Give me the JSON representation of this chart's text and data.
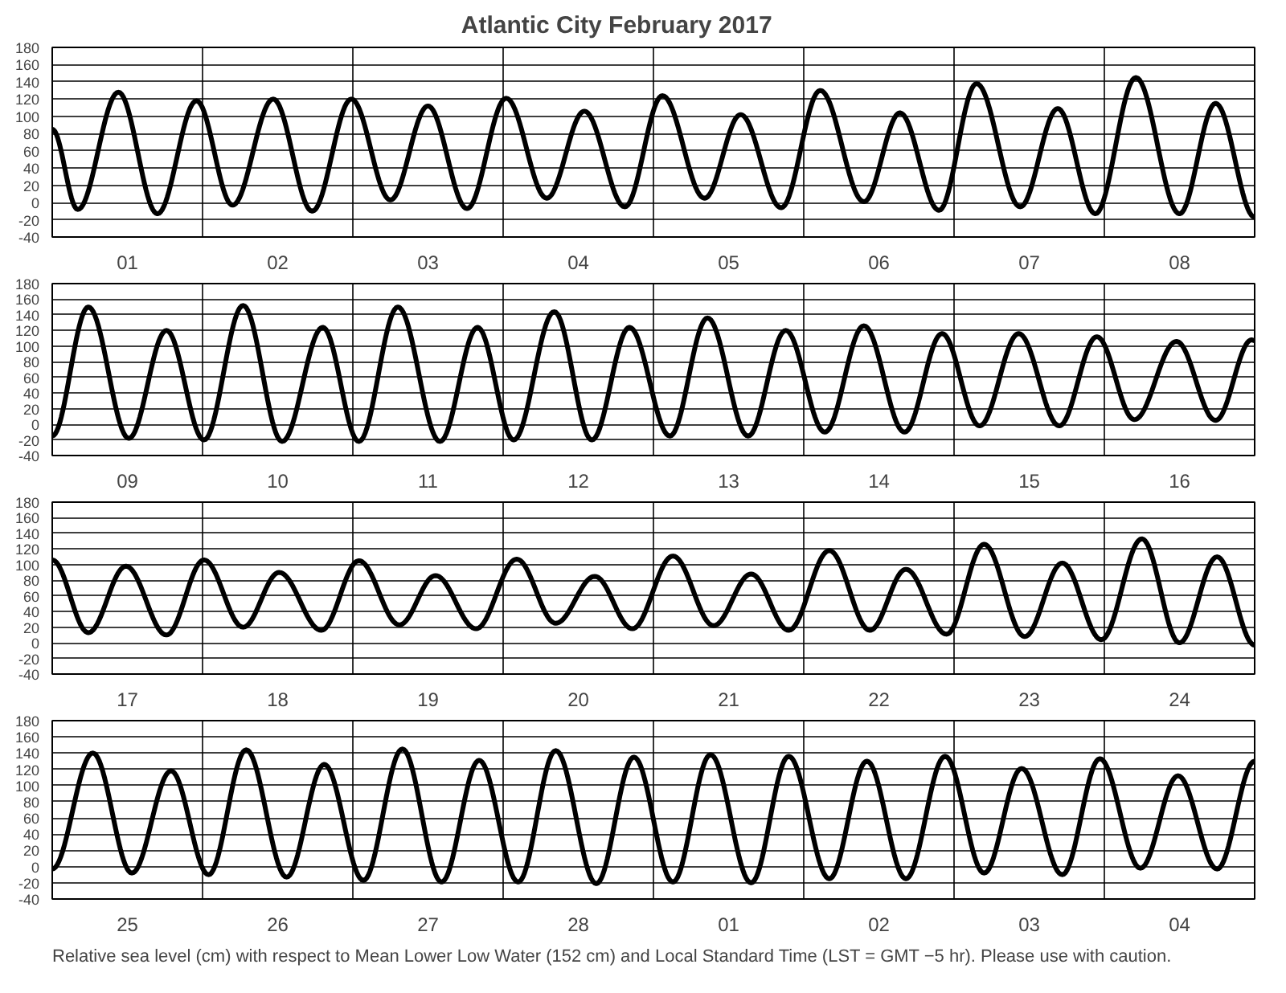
{
  "chart_data": [
    {
      "type": "line",
      "title": "Atlantic City          February   2017",
      "xlim": [
        "2017-02-01",
        "2017-02-09"
      ],
      "ylim": [
        -40,
        180
      ],
      "yticks": [
        -40,
        -20,
        0,
        20,
        40,
        60,
        80,
        100,
        120,
        140,
        160,
        180
      ],
      "grid": "y",
      "line_style": "solid",
      "xticks": [
        {
          "value": "2017-02-01T12:00",
          "label": "01"
        },
        {
          "value": "2017-02-02T12:00",
          "label": "02"
        },
        {
          "value": "2017-02-03T12:00",
          "label": "03"
        },
        {
          "value": "2017-02-04T12:00",
          "label": "04"
        },
        {
          "value": "2017-02-05T12:00",
          "label": "05"
        },
        {
          "value": "2017-02-06T12:00",
          "label": "06"
        },
        {
          "value": "2017-02-07T12:00",
          "label": "07"
        },
        {
          "value": "2017-02-08T12:00",
          "label": "08"
        }
      ],
      "ref_lines": [
        {
          "axis": "x",
          "value": "2017-02-02"
        },
        {
          "axis": "x",
          "value": "2017-02-03"
        },
        {
          "axis": "x",
          "value": "2017-02-04"
        },
        {
          "axis": "x",
          "value": "2017-02-05"
        },
        {
          "axis": "x",
          "value": "2017-02-06"
        },
        {
          "axis": "x",
          "value": "2017-02-07"
        },
        {
          "axis": "x",
          "value": "2017-02-08"
        }
      ],
      "x": [
        "2017-02-01T00:00",
        "2017-02-01T04:05",
        "2017-02-01T10:34",
        "2017-02-01T16:48",
        "2017-02-01T23:02",
        "2017-02-02T04:48",
        "2017-02-02T11:17",
        "2017-02-02T17:31",
        "2017-02-02T23:46",
        "2017-02-03T06:00",
        "2017-02-03T12:00",
        "2017-02-03T18:14",
        "2017-02-04T00:29",
        "2017-02-04T06:58",
        "2017-02-04T12:58",
        "2017-02-04T19:26",
        "2017-02-05T01:26",
        "2017-02-05T08:10",
        "2017-02-05T13:55",
        "2017-02-05T20:24",
        "2017-02-06T02:38",
        "2017-02-06T09:36",
        "2017-02-06T15:22",
        "2017-02-06T21:36",
        "2017-02-07T03:36",
        "2017-02-07T10:34",
        "2017-02-07T16:34",
        "2017-02-07T22:34",
        "2017-02-08T05:02",
        "2017-02-08T12:00",
        "2017-02-08T17:46",
        "2017-02-09T00:00"
      ],
      "series": [
        {
          "color": "#000000",
          "values": [
            85,
            -8,
            128,
            -13,
            118,
            -3,
            120,
            -10,
            120,
            3,
            112,
            -7,
            121,
            5,
            106,
            -5,
            124,
            5,
            102,
            -6,
            130,
            1,
            104,
            -9,
            138,
            -5,
            109,
            -13,
            145,
            -13,
            115,
            -17
          ]
        }
      ]
    },
    {
      "type": "line",
      "xlim": [
        "2017-02-09",
        "2017-02-17"
      ],
      "ylim": [
        -40,
        180
      ],
      "yticks": [
        -40,
        -20,
        0,
        20,
        40,
        60,
        80,
        100,
        120,
        140,
        160,
        180
      ],
      "grid": "y",
      "line_style": "solid",
      "xticks": [
        {
          "value": "2017-02-09T12:00",
          "label": "09"
        },
        {
          "value": "2017-02-10T12:00",
          "label": "10"
        },
        {
          "value": "2017-02-11T12:00",
          "label": "11"
        },
        {
          "value": "2017-02-12T12:00",
          "label": "12"
        },
        {
          "value": "2017-02-13T12:00",
          "label": "13"
        },
        {
          "value": "2017-02-14T12:00",
          "label": "14"
        },
        {
          "value": "2017-02-15T12:00",
          "label": "15"
        },
        {
          "value": "2017-02-16T12:00",
          "label": "16"
        }
      ],
      "ref_lines": [
        {
          "axis": "x",
          "value": "2017-02-10"
        },
        {
          "axis": "x",
          "value": "2017-02-11"
        },
        {
          "axis": "x",
          "value": "2017-02-12"
        },
        {
          "axis": "x",
          "value": "2017-02-13"
        },
        {
          "axis": "x",
          "value": "2017-02-14"
        },
        {
          "axis": "x",
          "value": "2017-02-15"
        },
        {
          "axis": "x",
          "value": "2017-02-16"
        }
      ],
      "x": [
        "2017-02-09T00:00",
        "2017-02-09T05:46",
        "2017-02-09T12:14",
        "2017-02-09T18:14",
        "2017-02-10T00:14",
        "2017-02-10T06:29",
        "2017-02-10T12:43",
        "2017-02-10T19:12",
        "2017-02-11T00:58",
        "2017-02-11T07:12",
        "2017-02-11T13:55",
        "2017-02-11T19:55",
        "2017-02-12T01:41",
        "2017-02-12T08:10",
        "2017-02-12T14:10",
        "2017-02-12T20:10",
        "2017-02-13T02:38",
        "2017-02-13T08:38",
        "2017-02-13T15:07",
        "2017-02-13T21:07",
        "2017-02-14T03:22",
        "2017-02-14T09:36",
        "2017-02-14T16:05",
        "2017-02-14T22:05",
        "2017-02-15T04:05",
        "2017-02-15T10:19",
        "2017-02-15T16:48",
        "2017-02-15T22:48",
        "2017-02-16T04:48",
        "2017-02-16T11:31",
        "2017-02-16T17:46",
        "2017-02-16T23:31",
        "2017-02-17T00:00"
      ],
      "series": [
        {
          "color": "#000000",
          "values": [
            -15,
            150,
            -18,
            120,
            -20,
            152,
            -22,
            124,
            -22,
            150,
            -22,
            124,
            -20,
            144,
            -20,
            124,
            -15,
            136,
            -15,
            120,
            -10,
            126,
            -10,
            116,
            -2,
            116,
            -2,
            112,
            6,
            106,
            5,
            108,
            107
          ]
        }
      ]
    },
    {
      "type": "line",
      "xlim": [
        "2017-02-17",
        "2017-02-25"
      ],
      "ylim": [
        -40,
        180
      ],
      "yticks": [
        -40,
        -20,
        0,
        20,
        40,
        60,
        80,
        100,
        120,
        140,
        160,
        180
      ],
      "grid": "y",
      "line_style": "solid",
      "xticks": [
        {
          "value": "2017-02-17T12:00",
          "label": "17"
        },
        {
          "value": "2017-02-18T12:00",
          "label": "18"
        },
        {
          "value": "2017-02-19T12:00",
          "label": "19"
        },
        {
          "value": "2017-02-20T12:00",
          "label": "20"
        },
        {
          "value": "2017-02-21T12:00",
          "label": "21"
        },
        {
          "value": "2017-02-22T12:00",
          "label": "22"
        },
        {
          "value": "2017-02-23T12:00",
          "label": "23"
        },
        {
          "value": "2017-02-24T12:00",
          "label": "24"
        }
      ],
      "ref_lines": [
        {
          "axis": "x",
          "value": "2017-02-18"
        },
        {
          "axis": "x",
          "value": "2017-02-19"
        },
        {
          "axis": "x",
          "value": "2017-02-20"
        },
        {
          "axis": "x",
          "value": "2017-02-21"
        },
        {
          "axis": "x",
          "value": "2017-02-22"
        },
        {
          "axis": "x",
          "value": "2017-02-23"
        },
        {
          "axis": "x",
          "value": "2017-02-24"
        }
      ],
      "x": [
        "2017-02-17T00:00",
        "2017-02-17T05:46",
        "2017-02-17T11:46",
        "2017-02-17T18:14",
        "2017-02-18T00:14",
        "2017-02-18T06:29",
        "2017-02-18T12:14",
        "2017-02-18T18:58",
        "2017-02-19T00:58",
        "2017-02-19T07:26",
        "2017-02-19T13:12",
        "2017-02-19T19:41",
        "2017-02-20T02:10",
        "2017-02-20T08:24",
        "2017-02-20T14:38",
        "2017-02-20T20:38",
        "2017-02-21T03:07",
        "2017-02-21T09:36",
        "2017-02-21T15:36",
        "2017-02-21T21:36",
        "2017-02-22T04:05",
        "2017-02-22T10:34",
        "2017-02-22T16:19",
        "2017-02-22T22:48",
        "2017-02-23T04:48",
        "2017-02-23T11:17",
        "2017-02-23T17:17",
        "2017-02-23T23:31",
        "2017-02-24T06:00",
        "2017-02-24T12:00",
        "2017-02-24T18:00",
        "2017-02-25T00:00"
      ],
      "series": [
        {
          "color": "#000000",
          "values": [
            106,
            13,
            98,
            10,
            106,
            20,
            90,
            16,
            105,
            23,
            86,
            18,
            107,
            25,
            85,
            18,
            111,
            22,
            88,
            16,
            118,
            16,
            94,
            11,
            126,
            8,
            102,
            4,
            133,
            0,
            110,
            -3
          ]
        }
      ]
    },
    {
      "type": "line",
      "xlim": [
        "2017-02-25",
        "2017-03-05"
      ],
      "ylim": [
        -40,
        180
      ],
      "yticks": [
        -40,
        -20,
        0,
        20,
        40,
        60,
        80,
        100,
        120,
        140,
        160,
        180
      ],
      "grid": "y",
      "line_style": "solid",
      "xticks": [
        {
          "value": "2017-02-25T12:00",
          "label": "25"
        },
        {
          "value": "2017-02-26T12:00",
          "label": "26"
        },
        {
          "value": "2017-02-27T12:00",
          "label": "27"
        },
        {
          "value": "2017-02-28T12:00",
          "label": "28"
        },
        {
          "value": "2017-03-01T12:00",
          "label": "01"
        },
        {
          "value": "2017-03-02T12:00",
          "label": "02"
        },
        {
          "value": "2017-03-03T12:00",
          "label": "03"
        },
        {
          "value": "2017-03-04T12:00",
          "label": "04"
        }
      ],
      "ref_lines": [
        {
          "axis": "x",
          "value": "2017-02-26"
        },
        {
          "axis": "x",
          "value": "2017-02-27"
        },
        {
          "axis": "x",
          "value": "2017-02-28"
        },
        {
          "axis": "x",
          "value": "2017-03-01"
        },
        {
          "axis": "x",
          "value": "2017-03-02"
        },
        {
          "axis": "x",
          "value": "2017-03-03"
        },
        {
          "axis": "x",
          "value": "2017-03-04"
        }
      ],
      "x": [
        "2017-02-25T00:00",
        "2017-02-25T06:29",
        "2017-02-25T12:43",
        "2017-02-25T18:58",
        "2017-02-26T00:58",
        "2017-02-26T06:58",
        "2017-02-26T13:26",
        "2017-02-26T19:26",
        "2017-02-27T01:41",
        "2017-02-27T07:55",
        "2017-02-27T14:10",
        "2017-02-27T20:10",
        "2017-02-28T02:24",
        "2017-02-28T08:24",
        "2017-02-28T14:53",
        "2017-02-28T20:53",
        "2017-03-01T03:07",
        "2017-03-01T09:07",
        "2017-03-01T15:36",
        "2017-03-01T21:36",
        "2017-03-02T04:05",
        "2017-03-02T10:05",
        "2017-03-02T16:19",
        "2017-03-02T22:34",
        "2017-03-03T04:48",
        "2017-03-03T10:48",
        "2017-03-03T17:17",
        "2017-03-03T23:17",
        "2017-03-04T05:46",
        "2017-03-04T11:46",
        "2017-03-04T18:00",
        "2017-03-05T00:00"
      ],
      "series": [
        {
          "color": "#000000",
          "values": [
            -3,
            140,
            -8,
            118,
            -10,
            144,
            -13,
            126,
            -17,
            145,
            -19,
            131,
            -19,
            143,
            -21,
            135,
            -19,
            138,
            -20,
            136,
            -15,
            130,
            -15,
            136,
            -8,
            121,
            -10,
            133,
            -2,
            112,
            -3,
            130
          ]
        }
      ],
      "annotations": [
        "Relative sea level (cm) with respect to Mean Lower Low Water (152 cm) and Local Standard Time (LST = GMT −5 hr). Please use with caution."
      ]
    }
  ]
}
